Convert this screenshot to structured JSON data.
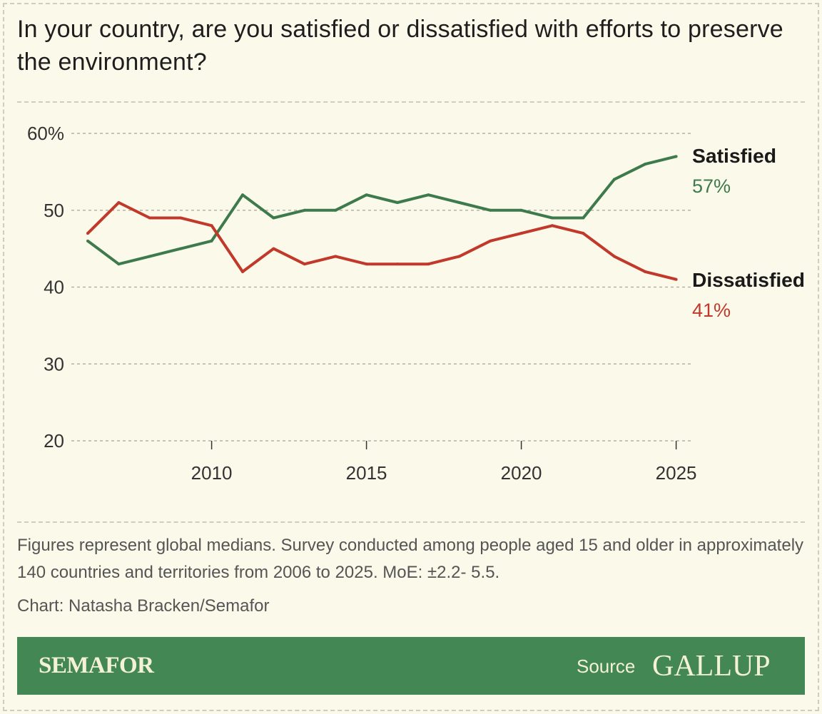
{
  "title": "In your country, are you satisfied or dissatisfied with efforts to preserve the environment?",
  "chart_data": {
    "type": "line",
    "title": "In your country, are you satisfied or dissatisfied with efforts to preserve the environment?",
    "x": [
      2006,
      2007,
      2008,
      2009,
      2010,
      2011,
      2012,
      2013,
      2014,
      2015,
      2016,
      2017,
      2018,
      2019,
      2020,
      2021,
      2022,
      2023,
      2024,
      2025
    ],
    "series": [
      {
        "name": "Satisfied",
        "end_label": "57%",
        "color": "#3d7a4c",
        "values": [
          46,
          43,
          44,
          45,
          46,
          52,
          49,
          50,
          50,
          52,
          51,
          52,
          51,
          50,
          50,
          49,
          49,
          54,
          56,
          57
        ]
      },
      {
        "name": "Dissatisfied",
        "end_label": "41%",
        "color": "#c0392b",
        "values": [
          47,
          51,
          49,
          49,
          48,
          42,
          45,
          43,
          44,
          43,
          43,
          43,
          44,
          46,
          47,
          48,
          47,
          44,
          42,
          41
        ]
      }
    ],
    "ylim": [
      20,
      60
    ],
    "yticks": [
      20,
      30,
      40,
      50,
      60
    ],
    "ytick_labels": [
      "20",
      "30",
      "40",
      "50",
      "60%"
    ],
    "xticks": [
      2010,
      2015,
      2020,
      2025
    ],
    "xtick_labels": [
      "2010",
      "2015",
      "2020",
      "2025"
    ],
    "grid": "horizontal dashed",
    "legend": "direct labels at line ends (right)"
  },
  "footnote": "Figures represent global medians. Survey conducted among people aged 15 and older in approximately 140 countries and territories from 2006 to 2025. MoE: ±2.2- 5.5.",
  "credit": "Chart: Natasha Bracken/Semafor",
  "banner": {
    "brand": "SEMAFOR",
    "source_label": "Source",
    "source_name": "GALLUP",
    "color": "#438755"
  }
}
